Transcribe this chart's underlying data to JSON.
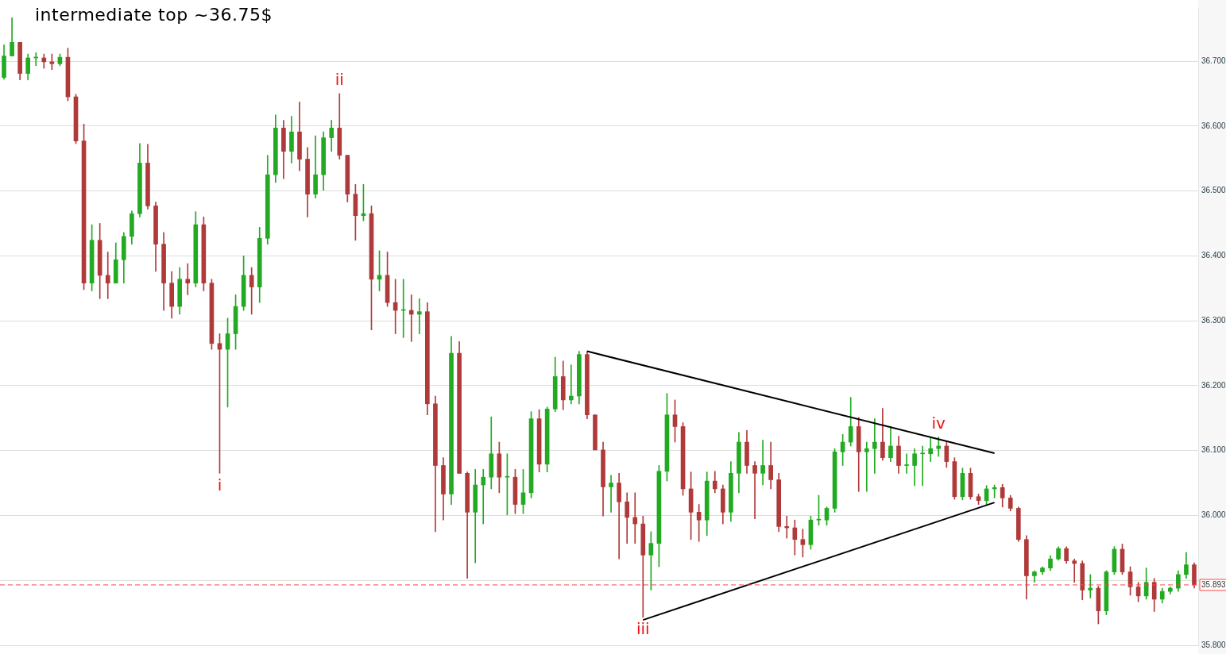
{
  "chart_data": {
    "type": "candlestick",
    "title": "intermediate top ~36.75$",
    "categories": [
      null,
      null,
      null,
      null,
      null,
      null,
      null,
      null,
      null,
      null,
      null,
      null,
      null,
      null,
      null,
      null,
      null,
      null,
      null,
      null,
      null,
      null,
      null,
      null,
      null,
      null,
      null,
      null,
      null,
      null,
      null,
      null,
      null,
      null,
      null,
      null,
      null,
      null,
      null,
      null,
      null,
      null,
      null,
      null,
      null,
      null,
      null,
      null,
      null,
      null,
      null,
      null,
      null,
      null,
      null,
      null,
      null,
      null,
      null,
      null,
      null,
      null,
      null,
      null,
      null,
      null,
      null,
      null,
      null,
      null,
      null,
      null,
      null,
      null,
      null,
      null,
      null,
      null,
      null,
      null,
      null,
      null,
      null,
      null,
      null,
      null,
      null,
      null,
      null,
      null,
      null,
      null,
      null,
      null,
      null,
      null,
      null,
      null,
      null,
      null,
      null,
      null,
      null,
      null,
      null,
      null,
      null,
      null,
      null,
      null,
      null,
      null,
      null,
      null,
      null,
      null,
      null,
      null,
      null,
      null,
      null,
      null,
      null,
      null,
      null,
      null,
      null,
      null,
      null,
      null,
      null,
      null,
      null,
      null,
      null,
      null,
      null,
      null,
      null,
      null,
      null,
      null,
      null,
      null,
      null,
      null,
      null,
      null,
      null,
      null
    ],
    "ohlc": [
      [
        36.675,
        36.725,
        36.672,
        36.708
      ],
      [
        36.708,
        36.767,
        36.708,
        36.729
      ],
      [
        36.729,
        36.729,
        36.671,
        36.681
      ],
      [
        36.681,
        36.711,
        36.671,
        36.705
      ],
      [
        36.705,
        36.713,
        36.693,
        36.705
      ],
      [
        36.705,
        36.711,
        36.689,
        36.699
      ],
      [
        36.699,
        36.711,
        36.687,
        36.696
      ],
      [
        36.696,
        36.711,
        36.693,
        36.706
      ],
      [
        36.706,
        36.72,
        36.639,
        36.645
      ],
      [
        36.645,
        36.649,
        36.573,
        36.577
      ],
      [
        36.577,
        36.603,
        36.348,
        36.358
      ],
      [
        36.358,
        36.448,
        36.346,
        36.424
      ],
      [
        36.424,
        36.45,
        36.334,
        36.37
      ],
      [
        36.37,
        36.406,
        36.334,
        36.358
      ],
      [
        36.358,
        36.42,
        36.358,
        36.394
      ],
      [
        36.394,
        36.436,
        36.358,
        36.43
      ],
      [
        36.43,
        36.469,
        36.418,
        36.465
      ],
      [
        36.465,
        36.573,
        36.46,
        36.543
      ],
      [
        36.543,
        36.572,
        36.472,
        36.477
      ],
      [
        36.477,
        36.483,
        36.376,
        36.418
      ],
      [
        36.418,
        36.436,
        36.316,
        36.358
      ],
      [
        36.358,
        36.376,
        36.304,
        36.322
      ],
      [
        36.322,
        36.382,
        36.31,
        36.364
      ],
      [
        36.364,
        36.388,
        36.34,
        36.358
      ],
      [
        36.358,
        36.468,
        36.352,
        36.448
      ],
      [
        36.448,
        36.46,
        36.346,
        36.358
      ],
      [
        36.358,
        36.364,
        36.256,
        36.265
      ],
      [
        36.265,
        36.28,
        36.065,
        36.256
      ],
      [
        36.256,
        36.304,
        36.167,
        36.28
      ],
      [
        36.28,
        36.34,
        36.256,
        36.322
      ],
      [
        36.322,
        36.4,
        36.316,
        36.37
      ],
      [
        36.37,
        36.382,
        36.31,
        36.352
      ],
      [
        36.352,
        36.444,
        36.328,
        36.427
      ],
      [
        36.427,
        36.555,
        36.418,
        36.525
      ],
      [
        36.525,
        36.617,
        36.513,
        36.597
      ],
      [
        36.597,
        36.609,
        36.519,
        36.561
      ],
      [
        36.561,
        36.615,
        36.543,
        36.591
      ],
      [
        36.591,
        36.637,
        36.531,
        36.549
      ],
      [
        36.549,
        36.567,
        36.46,
        36.495
      ],
      [
        36.495,
        36.585,
        36.489,
        36.525
      ],
      [
        36.525,
        36.591,
        36.501,
        36.582
      ],
      [
        36.582,
        36.609,
        36.561,
        36.597
      ],
      [
        36.597,
        36.65,
        36.549,
        36.555
      ],
      [
        36.555,
        36.555,
        36.483,
        36.495
      ],
      [
        36.495,
        36.51,
        36.424,
        36.462
      ],
      [
        36.462,
        36.51,
        36.454,
        36.465
      ],
      [
        36.465,
        36.477,
        36.286,
        36.364
      ],
      [
        36.364,
        36.408,
        36.346,
        36.37
      ],
      [
        36.37,
        36.406,
        36.322,
        36.328
      ],
      [
        36.328,
        36.364,
        36.28,
        36.316
      ],
      [
        36.316,
        36.364,
        36.274,
        36.316
      ],
      [
        36.316,
        36.34,
        36.268,
        36.31
      ],
      [
        36.31,
        36.334,
        36.28,
        36.314
      ],
      [
        36.314,
        36.328,
        36.155,
        36.172
      ],
      [
        36.172,
        36.184,
        35.975,
        36.077
      ],
      [
        36.077,
        36.089,
        35.993,
        36.033
      ],
      [
        36.033,
        36.276,
        36.017,
        36.25
      ],
      [
        36.25,
        36.268,
        36.065,
        36.065
      ],
      [
        36.065,
        36.067,
        35.903,
        36.005
      ],
      [
        36.005,
        36.071,
        35.927,
        36.047
      ],
      [
        36.047,
        36.071,
        35.987,
        36.059
      ],
      [
        36.059,
        36.152,
        36.041,
        36.095
      ],
      [
        36.095,
        36.113,
        36.035,
        36.059
      ],
      [
        36.059,
        36.095,
        36.001,
        36.059
      ],
      [
        36.059,
        36.071,
        36.003,
        36.017
      ],
      [
        36.017,
        36.071,
        36.003,
        36.035
      ],
      [
        36.035,
        36.16,
        36.027,
        36.149
      ],
      [
        36.149,
        36.163,
        36.067,
        36.079
      ],
      [
        36.079,
        36.167,
        36.067,
        36.164
      ],
      [
        36.164,
        36.244,
        36.16,
        36.214
      ],
      [
        36.214,
        36.238,
        36.163,
        36.178
      ],
      [
        36.178,
        36.232,
        36.172,
        36.184
      ],
      [
        36.184,
        36.253,
        36.172,
        36.248
      ],
      [
        36.248,
        36.253,
        36.149,
        36.155
      ],
      [
        36.155,
        36.155,
        36.101,
        36.101
      ],
      [
        36.101,
        36.113,
        35.999,
        36.044
      ],
      [
        36.044,
        36.062,
        36.005,
        36.05
      ],
      [
        36.05,
        36.065,
        35.933,
        36.021
      ],
      [
        36.021,
        36.035,
        35.957,
        35.997
      ],
      [
        35.997,
        36.035,
        35.957,
        35.987
      ],
      [
        35.987,
        35.999,
        35.843,
        35.939
      ],
      [
        35.939,
        35.975,
        35.885,
        35.957
      ],
      [
        35.957,
        36.077,
        35.921,
        36.068
      ],
      [
        36.068,
        36.188,
        36.053,
        36.155
      ],
      [
        36.155,
        36.178,
        36.113,
        36.137
      ],
      [
        36.137,
        36.143,
        36.031,
        36.041
      ],
      [
        36.041,
        36.067,
        35.963,
        36.005
      ],
      [
        36.005,
        36.017,
        35.96,
        35.993
      ],
      [
        35.993,
        36.067,
        35.969,
        36.053
      ],
      [
        36.053,
        36.068,
        36.035,
        36.041
      ],
      [
        36.041,
        36.047,
        35.987,
        36.005
      ],
      [
        36.005,
        36.083,
        35.991,
        36.065
      ],
      [
        36.065,
        36.128,
        36.035,
        36.113
      ],
      [
        36.113,
        36.131,
        36.065,
        36.077
      ],
      [
        36.077,
        36.083,
        35.995,
        36.065
      ],
      [
        36.065,
        36.116,
        36.047,
        36.077
      ],
      [
        36.077,
        36.113,
        36.041,
        36.055
      ],
      [
        36.055,
        36.065,
        35.975,
        35.983
      ],
      [
        35.983,
        35.999,
        35.965,
        35.981
      ],
      [
        35.981,
        35.993,
        35.939,
        35.963
      ],
      [
        35.963,
        35.979,
        35.936,
        35.955
      ],
      [
        35.955,
        35.999,
        35.948,
        35.993
      ],
      [
        35.993,
        36.031,
        35.985,
        35.993
      ],
      [
        35.993,
        36.013,
        35.985,
        36.011
      ],
      [
        36.011,
        36.103,
        36.005,
        36.098
      ],
      [
        36.098,
        36.125,
        36.077,
        36.113
      ],
      [
        36.113,
        36.182,
        36.107,
        36.137
      ],
      [
        36.137,
        36.151,
        36.037,
        36.098
      ],
      [
        36.098,
        36.113,
        36.037,
        36.103
      ],
      [
        36.103,
        36.149,
        36.065,
        36.113
      ],
      [
        36.113,
        36.165,
        36.085,
        36.089
      ],
      [
        36.089,
        36.137,
        36.083,
        36.107
      ],
      [
        36.107,
        36.122,
        36.065,
        36.077
      ],
      [
        36.077,
        36.095,
        36.065,
        36.077
      ],
      [
        36.077,
        36.103,
        36.046,
        36.095
      ],
      [
        36.095,
        36.107,
        36.046,
        36.095
      ],
      [
        36.095,
        36.121,
        36.083,
        36.103
      ],
      [
        36.103,
        36.121,
        36.091,
        36.107
      ],
      [
        36.107,
        36.115,
        36.074,
        36.083
      ],
      [
        36.083,
        36.089,
        36.025,
        36.029
      ],
      [
        36.029,
        36.073,
        36.024,
        36.065
      ],
      [
        36.065,
        36.073,
        36.025,
        36.029
      ],
      [
        36.029,
        36.033,
        36.017,
        36.023
      ],
      [
        36.023,
        36.046,
        36.017,
        36.041
      ],
      [
        36.041,
        36.047,
        36.027,
        36.043
      ],
      [
        36.043,
        36.048,
        36.013,
        36.027
      ],
      [
        36.027,
        36.031,
        36.007,
        36.011
      ],
      [
        36.011,
        36.013,
        35.96,
        35.963
      ],
      [
        35.963,
        35.969,
        35.871,
        35.907
      ],
      [
        35.907,
        35.915,
        35.897,
        35.913
      ],
      [
        35.913,
        35.921,
        35.909,
        35.919
      ],
      [
        35.919,
        35.938,
        35.915,
        35.933
      ],
      [
        35.933,
        35.952,
        35.931,
        35.949
      ],
      [
        35.949,
        35.952,
        35.926,
        35.93
      ],
      [
        35.93,
        35.933,
        35.897,
        35.926
      ],
      [
        35.926,
        35.93,
        35.87,
        35.885
      ],
      [
        35.885,
        35.909,
        35.873,
        35.888
      ],
      [
        35.888,
        35.891,
        35.833,
        35.853
      ],
      [
        35.853,
        35.915,
        35.847,
        35.913
      ],
      [
        35.913,
        35.952,
        35.909,
        35.948
      ],
      [
        35.948,
        35.956,
        35.909,
        35.913
      ],
      [
        35.913,
        35.921,
        35.877,
        35.89
      ],
      [
        35.89,
        35.897,
        35.867,
        35.876
      ],
      [
        35.876,
        35.919,
        35.871,
        35.897
      ],
      [
        35.897,
        35.903,
        35.852,
        35.871
      ],
      [
        35.871,
        35.888,
        35.865,
        35.883
      ],
      [
        35.883,
        35.89,
        35.879,
        35.888
      ],
      [
        35.888,
        35.915,
        35.883,
        35.909
      ],
      [
        35.909,
        35.943,
        35.903,
        35.924
      ],
      [
        35.924,
        35.927,
        35.888,
        35.893
      ]
    ],
    "colors": [
      "#22aa22",
      "#22aa22",
      "#b03a3a",
      "#22aa22",
      "#22aa22",
      "#b03a3a",
      "#b03a3a",
      "#22aa22",
      "#b03a3a",
      "#b03a3a",
      "#b03a3a",
      "#22aa22",
      "#b03a3a",
      "#b03a3a",
      "#22aa22",
      "#22aa22",
      "#22aa22",
      "#22aa22",
      "#b03a3a",
      "#b03a3a",
      "#b03a3a",
      "#b03a3a",
      "#22aa22",
      "#b03a3a",
      "#22aa22",
      "#b03a3a",
      "#b03a3a",
      "#b03a3a",
      "#22aa22",
      "#22aa22",
      "#22aa22",
      "#b03a3a",
      "#22aa22",
      "#22aa22",
      "#22aa22",
      "#b03a3a",
      "#22aa22",
      "#b03a3a",
      "#b03a3a",
      "#22aa22",
      "#22aa22",
      "#22aa22",
      "#b03a3a",
      "#b03a3a",
      "#b03a3a",
      "#22aa22",
      "#b03a3a",
      "#22aa22",
      "#b03a3a",
      "#b03a3a",
      "#22aa22",
      "#b03a3a",
      "#22aa22",
      "#b03a3a",
      "#b03a3a",
      "#b03a3a",
      "#22aa22",
      "#b03a3a",
      "#b03a3a",
      "#22aa22",
      "#22aa22",
      "#22aa22",
      "#b03a3a",
      "#22aa22",
      "#b03a3a",
      "#22aa22",
      "#22aa22",
      "#b03a3a",
      "#22aa22",
      "#22aa22",
      "#b03a3a",
      "#22aa22",
      "#22aa22",
      "#b03a3a",
      "#b03a3a",
      "#b03a3a",
      "#22aa22",
      "#b03a3a",
      "#b03a3a",
      "#b03a3a",
      "#b03a3a",
      "#22aa22",
      "#22aa22",
      "#22aa22",
      "#b03a3a",
      "#b03a3a",
      "#b03a3a",
      "#b03a3a",
      "#22aa22",
      "#b03a3a",
      "#b03a3a",
      "#22aa22",
      "#22aa22",
      "#b03a3a",
      "#b03a3a",
      "#22aa22",
      "#b03a3a",
      "#b03a3a",
      "#b03a3a",
      "#b03a3a",
      "#b03a3a",
      "#22aa22",
      "#22aa22",
      "#22aa22",
      "#22aa22",
      "#22aa22",
      "#22aa22",
      "#b03a3a",
      "#22aa22",
      "#22aa22",
      "#b03a3a",
      "#22aa22",
      "#b03a3a",
      "#22aa22",
      "#22aa22",
      "#22aa22",
      "#22aa22",
      "#22aa22",
      "#b03a3a",
      "#b03a3a",
      "#22aa22",
      "#b03a3a",
      "#b03a3a",
      "#22aa22",
      "#22aa22",
      "#b03a3a",
      "#b03a3a",
      "#b03a3a",
      "#b03a3a",
      "#22aa22",
      "#22aa22",
      "#22aa22",
      "#22aa22",
      "#b03a3a",
      "#b03a3a",
      "#b03a3a",
      "#22aa22",
      "#b03a3a",
      "#22aa22",
      "#22aa22",
      "#b03a3a",
      "#b03a3a",
      "#b03a3a",
      "#22aa22",
      "#b03a3a",
      "#22aa22",
      "#22aa22",
      "#22aa22",
      "#22aa22",
      "#b03a3a"
    ],
    "value_labels": [
      null,
      null,
      null,
      null,
      null,
      null,
      null,
      null,
      null,
      null,
      null,
      null,
      null,
      null,
      null,
      null,
      null,
      null,
      null,
      null,
      null,
      null,
      null,
      null,
      null,
      null,
      null,
      "i",
      null,
      null,
      null,
      null,
      null,
      null,
      null,
      null,
      null,
      null,
      null,
      null,
      null,
      null,
      "ii",
      null,
      null,
      null,
      null,
      null,
      null,
      null,
      null,
      null,
      null,
      null,
      null,
      null,
      null,
      null,
      null,
      null,
      null,
      null,
      null,
      null,
      null,
      null,
      null,
      null,
      null,
      null,
      null,
      null,
      null,
      null,
      null,
      null,
      null,
      null,
      null,
      null,
      "iii",
      null,
      null,
      null,
      null,
      null,
      null,
      null,
      null,
      null,
      null,
      null,
      null,
      null,
      null,
      null,
      null,
      null,
      null,
      null,
      null,
      null,
      null,
      null,
      null,
      null,
      null,
      null,
      null,
      null,
      null,
      null,
      null,
      null,
      null,
      null,
      null,
      "iv",
      null,
      null,
      null,
      null,
      null,
      null,
      null,
      null,
      null,
      null,
      null,
      null,
      null,
      null,
      null,
      null,
      null,
      null,
      null,
      null,
      null,
      null,
      null,
      null,
      null,
      null,
      null,
      null,
      null,
      null,
      null,
      null
    ],
    "series": [
      {
        "type": "line",
        "color": "#000000",
        "values": [
          null,
          null,
          null,
          null,
          null,
          null,
          null,
          null,
          null,
          null,
          null,
          null,
          null,
          null,
          null,
          null,
          null,
          null,
          null,
          null,
          null,
          null,
          null,
          null,
          null,
          null,
          null,
          null,
          null,
          null,
          null,
          null,
          null,
          null,
          null,
          null,
          null,
          null,
          null,
          null,
          null,
          null,
          null,
          null,
          null,
          null,
          null,
          null,
          null,
          null,
          null,
          null,
          null,
          null,
          null,
          null,
          null,
          null,
          null,
          null,
          null,
          null,
          null,
          null,
          null,
          null,
          null,
          null,
          null,
          null,
          null,
          null,
          null,
          36.253,
          null,
          null,
          null,
          null,
          null,
          null,
          null,
          null,
          null,
          null,
          null,
          null,
          null,
          null,
          null,
          null,
          null,
          null,
          null,
          null,
          null,
          null,
          null,
          null,
          null,
          null,
          null,
          null,
          null,
          null,
          null,
          null,
          null,
          null,
          null,
          null,
          null,
          null,
          null,
          null,
          null,
          null,
          null,
          null,
          null,
          null,
          null,
          null,
          null,
          null,
          36.096,
          null,
          null,
          null,
          null,
          null,
          null,
          null,
          null,
          null,
          null,
          null,
          null,
          null,
          null,
          null,
          null,
          null,
          null,
          null,
          null,
          null,
          null,
          null,
          null,
          null
        ]
      },
      {
        "type": "line",
        "color": "#000000",
        "values": [
          null,
          null,
          null,
          null,
          null,
          null,
          null,
          null,
          null,
          null,
          null,
          null,
          null,
          null,
          null,
          null,
          null,
          null,
          null,
          null,
          null,
          null,
          null,
          null,
          null,
          null,
          null,
          null,
          null,
          null,
          null,
          null,
          null,
          null,
          null,
          null,
          null,
          null,
          null,
          null,
          null,
          null,
          null,
          null,
          null,
          null,
          null,
          null,
          null,
          null,
          null,
          null,
          null,
          null,
          null,
          null,
          null,
          null,
          null,
          null,
          null,
          null,
          null,
          null,
          null,
          null,
          null,
          null,
          null,
          null,
          null,
          null,
          null,
          null,
          null,
          null,
          null,
          null,
          null,
          null,
          35.839,
          null,
          null,
          null,
          null,
          null,
          null,
          null,
          null,
          null,
          null,
          null,
          null,
          null,
          null,
          null,
          null,
          null,
          null,
          null,
          null,
          null,
          null,
          null,
          null,
          null,
          null,
          null,
          null,
          null,
          null,
          null,
          null,
          null,
          null,
          null,
          null,
          null,
          null,
          null,
          null,
          null,
          null,
          null,
          36.02,
          null,
          null,
          null,
          null,
          null,
          null,
          null,
          null,
          null,
          null,
          null,
          null,
          null,
          null,
          null,
          null,
          null,
          null,
          null,
          null,
          null,
          null,
          null,
          null,
          null
        ]
      }
    ],
    "ref_lines": [
      {
        "axis": "y",
        "value": 35.893,
        "label": "35.893",
        "color": "#ff4444",
        "line_style": "dashed"
      }
    ],
    "ylim": [
      35.8,
      36.782
    ],
    "yticks": [
      {
        "value": 35.8,
        "label": "35.800"
      },
      {
        "value": 35.9,
        "label": null
      },
      {
        "value": 36.0,
        "label": "36.000"
      },
      {
        "value": 36.1,
        "label": "36.100"
      },
      {
        "value": 36.2,
        "label": "36.200"
      },
      {
        "value": 36.3,
        "label": "36.300"
      },
      {
        "value": 36.4,
        "label": "36.400"
      },
      {
        "value": 36.5,
        "label": "36.500"
      },
      {
        "value": 36.6,
        "label": "36.600"
      },
      {
        "value": 36.7,
        "label": "36.700"
      }
    ],
    "grid": "y",
    "legend": false
  }
}
